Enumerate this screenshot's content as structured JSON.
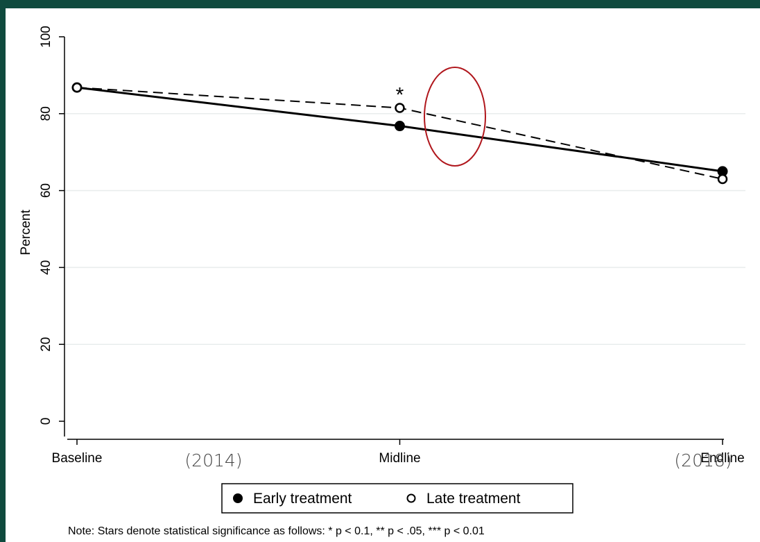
{
  "chart_data": {
    "type": "line",
    "categories": [
      "Baseline",
      "Midline",
      "Endline"
    ],
    "ylabel": "Percent",
    "ylim": [
      0,
      100
    ],
    "yticks": [
      0,
      20,
      40,
      60,
      80,
      100
    ],
    "grid": true,
    "series": [
      {
        "name": "Early treatment",
        "values": [
          86.8,
          76.8,
          65.0
        ],
        "marker": "filled-circle",
        "line": "solid",
        "color": "#000000"
      },
      {
        "name": "Late treatment",
        "values": [
          86.8,
          81.5,
          63.0
        ],
        "marker": "hollow-circle",
        "line": "dashed",
        "color": "#000000"
      }
    ],
    "annotations": [
      {
        "type": "significance-star",
        "text": "*",
        "category": "Midline"
      },
      {
        "type": "highlight-ellipse",
        "color": "#b0161c"
      }
    ],
    "legend_position": "bottom",
    "year_labels": [
      {
        "text": "(2014)",
        "near": "Baseline"
      },
      {
        "text": "(2018)",
        "near": "Endline"
      }
    ],
    "note": "Note: Stars denote statistical significance as follows:  * p < 0.1, ** p < .05, *** p < 0.01"
  }
}
